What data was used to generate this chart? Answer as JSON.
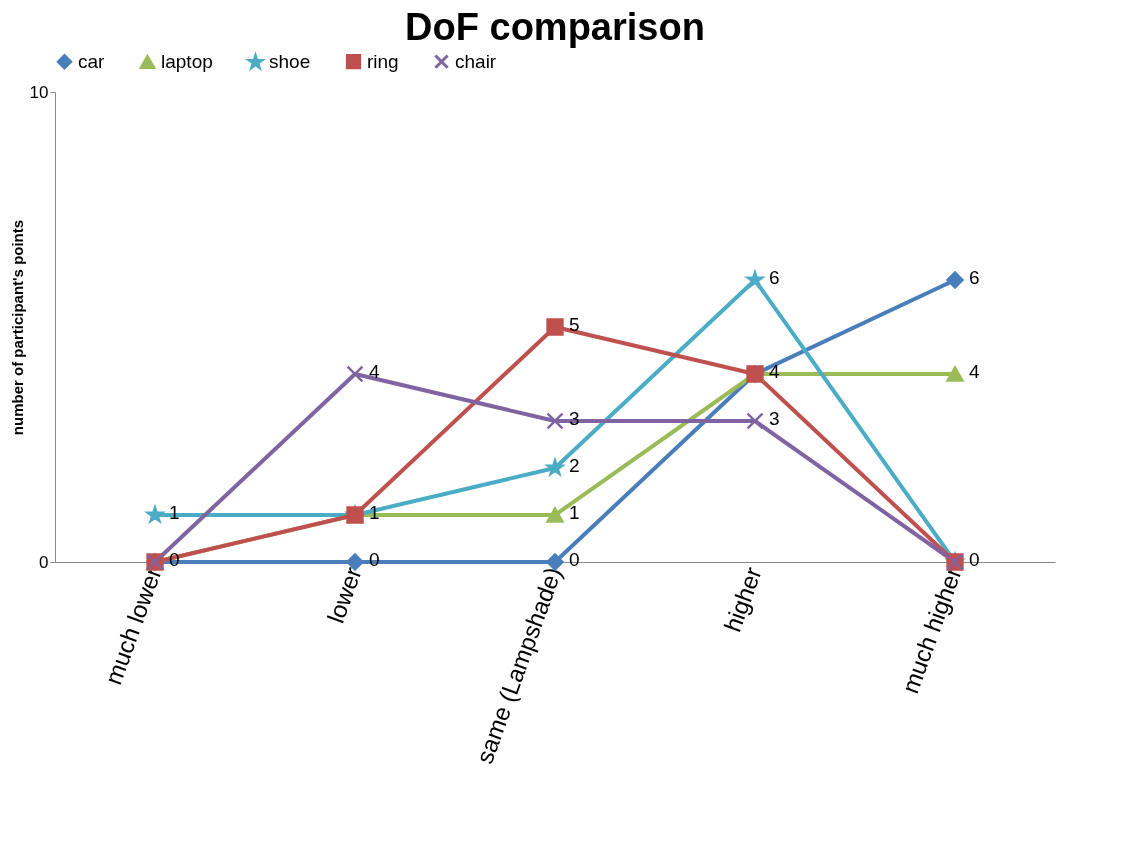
{
  "chart_data": {
    "type": "line",
    "title": "DoF comparison",
    "ylabel": "number of participant's points",
    "categories": [
      "much lower",
      "lower",
      "same (Lampshade)",
      "higher",
      "much higher"
    ],
    "series": [
      {
        "name": "car",
        "color": "#4a7ebb",
        "marker": "diamond",
        "values": [
          0,
          0,
          0,
          4,
          6
        ],
        "value_labels": [
          "0",
          "0",
          "0",
          "4",
          "6"
        ]
      },
      {
        "name": "laptop",
        "color": "#9bbb59",
        "marker": "triangle",
        "values": [
          0,
          1,
          1,
          4,
          4
        ],
        "value_labels": [
          null,
          "1",
          "1",
          null,
          "4"
        ]
      },
      {
        "name": "shoe",
        "color": "#4bacc6",
        "marker": "star",
        "values": [
          1,
          1,
          2,
          6,
          0
        ],
        "value_labels": [
          "1",
          null,
          "2",
          "6",
          "0"
        ]
      },
      {
        "name": "ring",
        "color": "#c0504d",
        "marker": "square",
        "values": [
          0,
          1,
          5,
          4,
          0
        ],
        "value_labels": [
          null,
          null,
          "5",
          null,
          null
        ]
      },
      {
        "name": "chair",
        "color": "#8064a2",
        "marker": "cross",
        "values": [
          0,
          4,
          3,
          3,
          0
        ],
        "value_labels": [
          null,
          "4",
          "3",
          "3",
          null
        ]
      }
    ],
    "ylim": [
      0,
      10
    ],
    "yticks": [
      0,
      10
    ],
    "grid": false,
    "legend": "top",
    "line_style": "solid"
  }
}
